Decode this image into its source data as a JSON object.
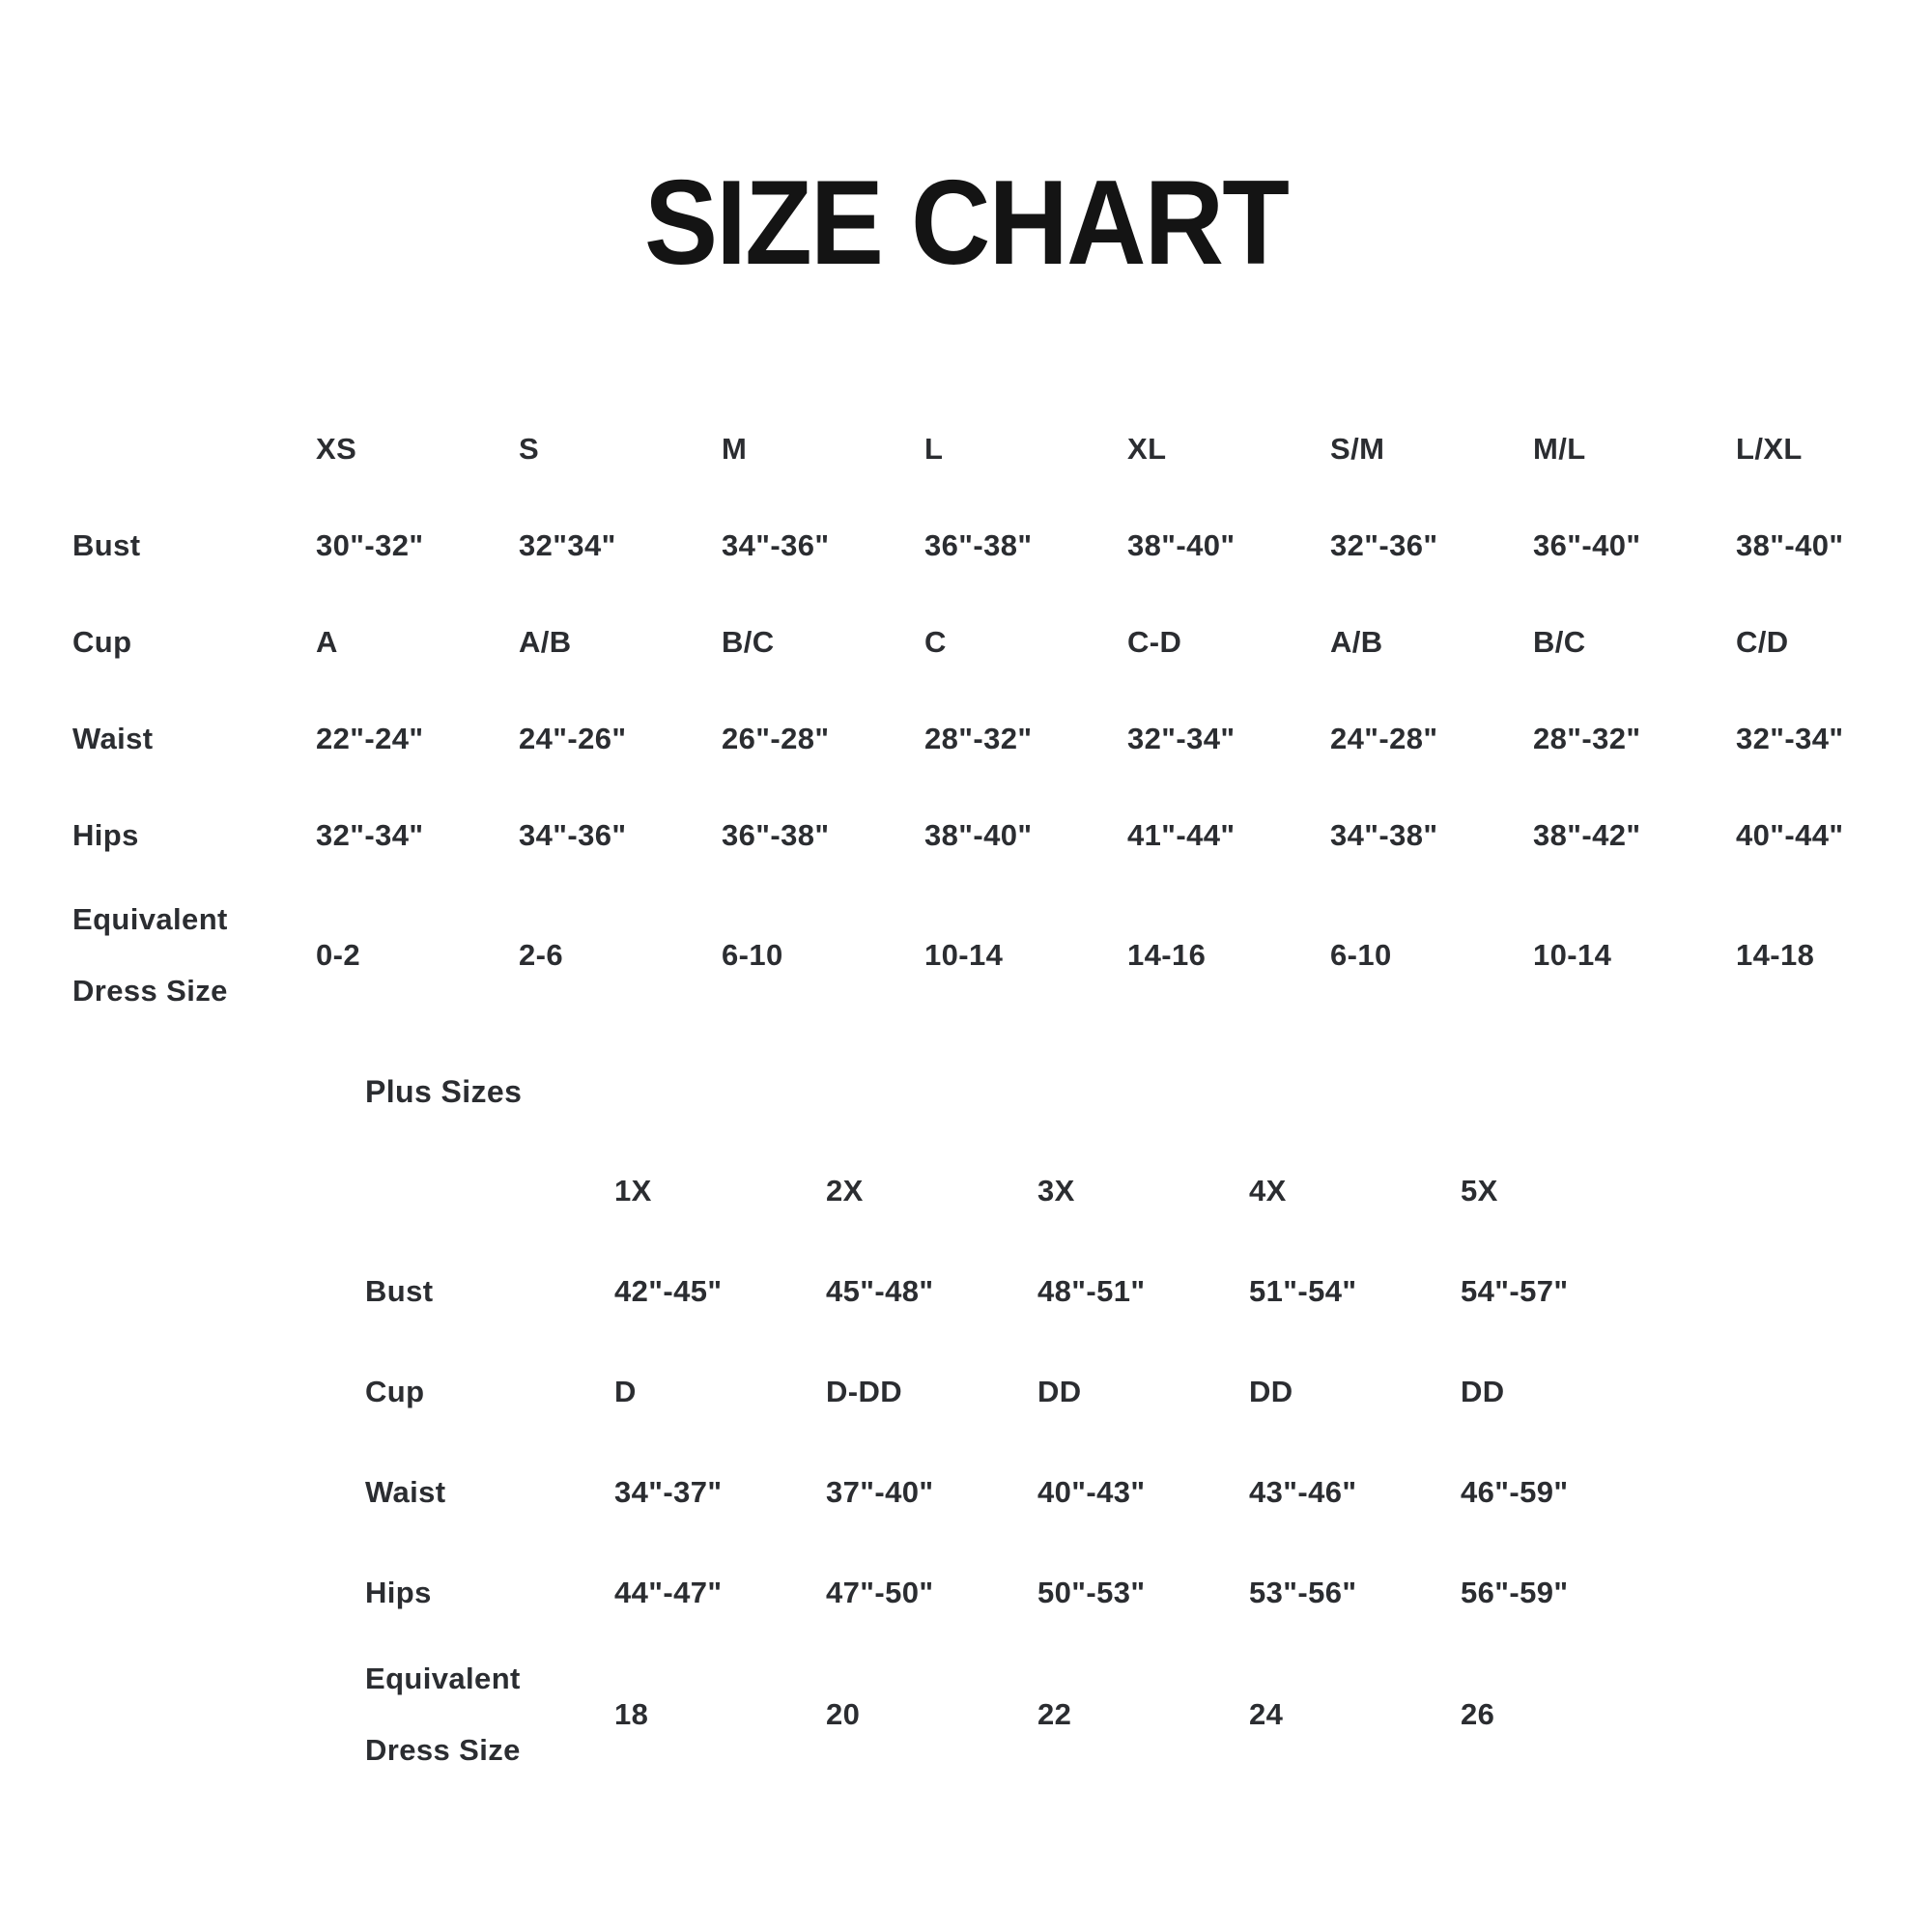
{
  "page_title": "SIZE CHART",
  "colors": {
    "background": "#ffffff",
    "title_text": "#141414",
    "table_text": "#2b2d31"
  },
  "standard_table": {
    "columns": [
      "XS",
      "S",
      "M",
      "L",
      "XL",
      "S/M",
      "M/L",
      "L/XL"
    ],
    "rows": [
      {
        "label": "Bust",
        "values": [
          "30\"-32\"",
          "32\"34\"",
          "34\"-36\"",
          "36\"-38\"",
          "38\"-40\"",
          "32\"-36\"",
          "36\"-40\"",
          "38\"-40\""
        ]
      },
      {
        "label": "Cup",
        "values": [
          "A",
          "A/B",
          "B/C",
          "C",
          "C-D",
          "A/B",
          "B/C",
          "C/D"
        ]
      },
      {
        "label": "Waist",
        "values": [
          "22\"-24\"",
          "24\"-26\"",
          "26\"-28\"",
          "28\"-32\"",
          "32\"-34\"",
          "24\"-28\"",
          "28\"-32\"",
          "32\"-34\""
        ]
      },
      {
        "label": "Hips",
        "values": [
          "32\"-34\"",
          "34\"-36\"",
          "36\"-38\"",
          "38\"-40\"",
          "41\"-44\"",
          "34\"-38\"",
          "38\"-42\"",
          "40\"-44\""
        ]
      },
      {
        "label": "Equivalent Dress Size",
        "label_line1": "Equivalent",
        "label_line2": "Dress Size",
        "values": [
          "0-2",
          "2-6",
          "6-10",
          "10-14",
          "14-16",
          "6-10",
          "10-14",
          "14-18"
        ]
      }
    ]
  },
  "plus_section": {
    "heading": "Plus Sizes",
    "columns": [
      "1X",
      "2X",
      "3X",
      "4X",
      "5X"
    ],
    "rows": [
      {
        "label": "Bust",
        "values": [
          "42\"-45\"",
          "45\"-48\"",
          "48\"-51\"",
          "51\"-54\"",
          "54\"-57\""
        ]
      },
      {
        "label": "Cup",
        "values": [
          "D",
          "D-DD",
          "DD",
          "DD",
          "DD"
        ]
      },
      {
        "label": "Waist",
        "values": [
          "34\"-37\"",
          "37\"-40\"",
          "40\"-43\"",
          "43\"-46\"",
          "46\"-59\""
        ]
      },
      {
        "label": "Hips",
        "values": [
          "44\"-47\"",
          "47\"-50\"",
          "50\"-53\"",
          "53\"-56\"",
          "56\"-59\""
        ]
      },
      {
        "label": "Equivalent Dress Size",
        "label_line1": "Equivalent",
        "label_line2": "Dress Size",
        "values": [
          "18",
          "20",
          "22",
          "24",
          "26"
        ]
      }
    ]
  },
  "chart_data": [
    {
      "type": "table",
      "title": "SIZE CHART",
      "columns": [
        "",
        "XS",
        "S",
        "M",
        "L",
        "XL",
        "S/M",
        "M/L",
        "L/XL"
      ],
      "rows": [
        [
          "Bust",
          "30\"-32\"",
          "32\"34\"",
          "34\"-36\"",
          "36\"-38\"",
          "38\"-40\"",
          "32\"-36\"",
          "36\"-40\"",
          "38\"-40\""
        ],
        [
          "Cup",
          "A",
          "A/B",
          "B/C",
          "C",
          "C-D",
          "A/B",
          "B/C",
          "C/D"
        ],
        [
          "Waist",
          "22\"-24\"",
          "24\"-26\"",
          "26\"-28\"",
          "28\"-32\"",
          "32\"-34\"",
          "24\"-28\"",
          "28\"-32\"",
          "32\"-34\""
        ],
        [
          "Hips",
          "32\"-34\"",
          "34\"-36\"",
          "36\"-38\"",
          "38\"-40\"",
          "41\"-44\"",
          "34\"-38\"",
          "38\"-42\"",
          "40\"-44\""
        ],
        [
          "Equivalent Dress Size",
          "0-2",
          "2-6",
          "6-10",
          "10-14",
          "14-16",
          "6-10",
          "10-14",
          "14-18"
        ]
      ]
    },
    {
      "type": "table",
      "title": "Plus Sizes",
      "columns": [
        "",
        "1X",
        "2X",
        "3X",
        "4X",
        "5X"
      ],
      "rows": [
        [
          "Bust",
          "42\"-45\"",
          "45\"-48\"",
          "48\"-51\"",
          "51\"-54\"",
          "54\"-57\""
        ],
        [
          "Cup",
          "D",
          "D-DD",
          "DD",
          "DD",
          "DD"
        ],
        [
          "Waist",
          "34\"-37\"",
          "37\"-40\"",
          "40\"-43\"",
          "43\"-46\"",
          "46\"-59\""
        ],
        [
          "Hips",
          "44\"-47\"",
          "47\"-50\"",
          "50\"-53\"",
          "53\"-56\"",
          "56\"-59\""
        ],
        [
          "Equivalent Dress Size",
          "18",
          "20",
          "22",
          "24",
          "26"
        ]
      ]
    }
  ]
}
